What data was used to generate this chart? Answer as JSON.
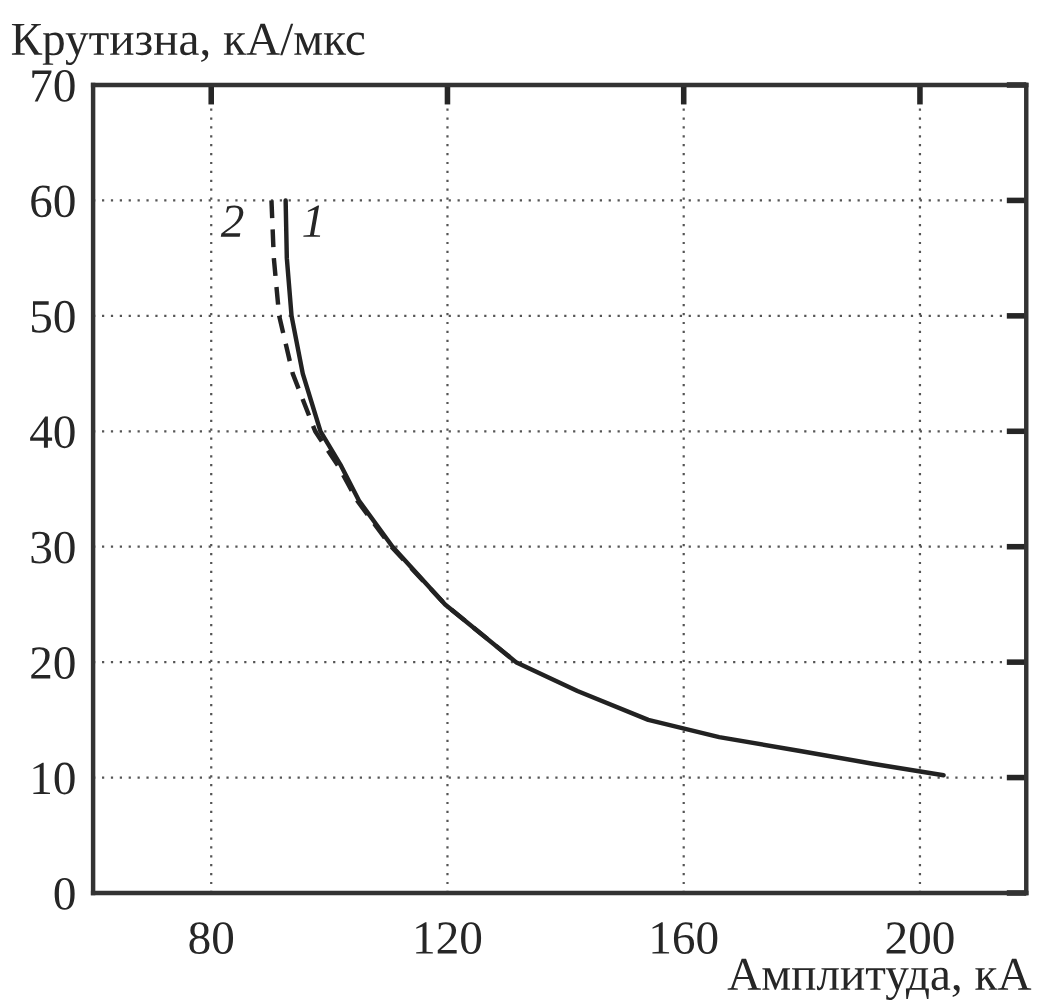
{
  "chart_data": {
    "type": "line",
    "xlabel": "Амплитуда, кА",
    "ylabel": "Крутизна, кА/мкс",
    "xlim": [
      60,
      218
    ],
    "ylim": [
      0,
      70
    ],
    "xticks": [
      80,
      120,
      160,
      200
    ],
    "yticks": [
      0,
      10,
      20,
      30,
      40,
      50,
      60,
      70
    ],
    "grid": true,
    "series": [
      {
        "name": "1",
        "color": "#222222",
        "line_style": "solid",
        "x": [
          92.6,
          92.8,
          93.6,
          95.5,
          98.5,
          102,
          105,
          110.7,
          119.6,
          131.6,
          142,
          154,
          166,
          179.7,
          192,
          204
        ],
        "values": [
          60,
          55,
          50,
          45,
          40,
          37,
          34,
          30,
          25,
          20,
          17.5,
          15,
          13.5,
          12.3,
          11.2,
          10.2
        ]
      },
      {
        "name": "2",
        "color": "#222222",
        "line_style": "dashed",
        "x": [
          90.2,
          90.6,
          91.5,
          93.8,
          97.6,
          101.5,
          104.7,
          110.5,
          119.6,
          131.6
        ],
        "values": [
          60,
          55,
          50,
          45,
          40,
          37,
          34,
          30,
          25,
          20
        ]
      }
    ]
  }
}
